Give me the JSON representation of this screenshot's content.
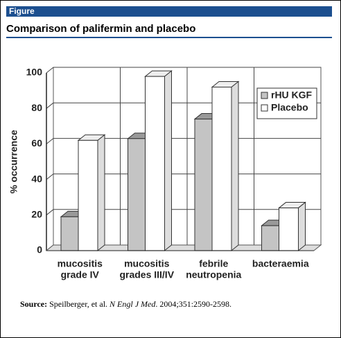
{
  "header": "Figure",
  "chart_data": {
    "type": "bar3d",
    "title": "Comparison of palifermin and placebo",
    "y_label": "% occurrence",
    "categories": [
      [
        "mucositis",
        "grade IV"
      ],
      [
        "mucositis",
        "grades III/IV"
      ],
      [
        "febrile",
        "neutropenia"
      ],
      [
        "bacteraemia"
      ]
    ],
    "series": [
      {
        "name": "rHU KGF",
        "color": "#c4c4c4",
        "values": [
          19,
          63,
          74,
          14
        ]
      },
      {
        "name": "Placebo",
        "color": "#ffffff",
        "values": [
          62,
          98,
          92,
          24
        ]
      }
    ],
    "ylim": [
      0,
      100
    ],
    "yticks": [
      0,
      20,
      40,
      60,
      80,
      100
    ],
    "grid": true,
    "legend": "top-right"
  },
  "source": {
    "label": "Source:",
    "authors": "Speilberger, et al.",
    "journal": "N Engl J Med",
    "citation": ". 2004;351:2590-2598."
  }
}
